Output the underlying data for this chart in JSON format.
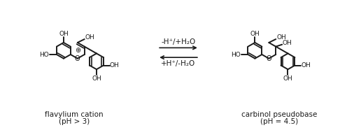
{
  "fig_width": 5.16,
  "fig_height": 1.86,
  "dpi": 100,
  "bg_color": "#ffffff",
  "line_color": "#1a1a1a",
  "lw": 1.4,
  "arrow_text_top": "-H⁺/+H₂O",
  "arrow_text_bottom": "+H⁺/-H₂O",
  "label_left_line1": "flavylium cation",
  "label_left_line2": "(pH > 3)",
  "label_right_line1": "carbinol pseudobase",
  "label_right_line2": "(pH = 4.5)",
  "label_fontsize": 7.5,
  "arrow_fontsize": 7.5,
  "oh_fontsize": 6.5
}
